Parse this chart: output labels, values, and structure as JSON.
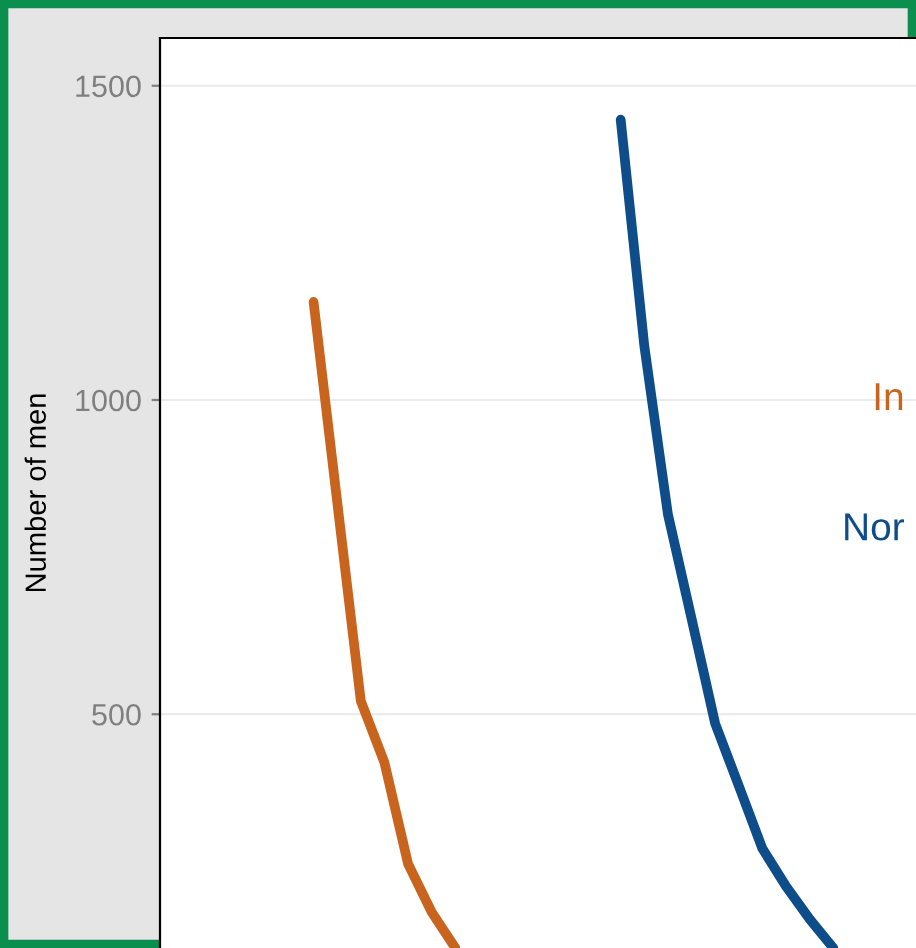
{
  "chart_data": {
    "type": "line",
    "ylabel": "Number of men",
    "categories": [
      null,
      null,
      null,
      null,
      null,
      null,
      null,
      null,
      null,
      null,
      null,
      null,
      null,
      null,
      null,
      null,
      null,
      null,
      null,
      null,
      null,
      null,
      null,
      null,
      null,
      null,
      null,
      null,
      null,
      null,
      null,
      null
    ],
    "ylim": [
      128,
      1576
    ],
    "yticks": [
      500,
      1000,
      1500
    ],
    "tick_labels": "y",
    "grid": "y",
    "legend": false,
    "marker": "none",
    "line_style": "solid",
    "series": [
      {
        "name": "In",
        "color": "#c8641e",
        "values": [
          null,
          null,
          null,
          null,
          null,
          null,
          1156,
          838,
          521,
          423,
          262,
          185,
          128,
          null,
          null,
          null,
          null,
          null,
          null,
          null,
          null,
          null,
          null,
          null,
          null,
          null,
          null,
          null,
          null,
          null,
          null,
          null
        ]
      },
      {
        "name": "Nor",
        "color": "#0f4d8a",
        "values": [
          null,
          null,
          null,
          null,
          null,
          null,
          null,
          null,
          null,
          null,
          null,
          null,
          null,
          null,
          null,
          null,
          null,
          null,
          null,
          1446,
          1086,
          818,
          652,
          485,
          386,
          286,
          226,
          174,
          128,
          null,
          null,
          null
        ]
      }
    ]
  }
}
